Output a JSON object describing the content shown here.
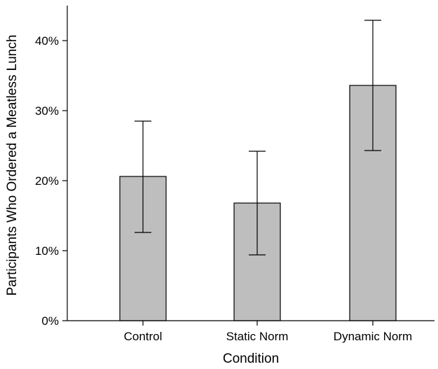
{
  "chart_data": {
    "type": "bar",
    "categories": [
      "Control",
      "Static Norm",
      "Dynamic Norm"
    ],
    "values": [
      20.6,
      16.8,
      33.6
    ],
    "error_bars": [
      {
        "low": 12.6,
        "high": 28.5
      },
      {
        "low": 9.4,
        "high": 24.2
      },
      {
        "low": 24.3,
        "high": 42.9
      }
    ],
    "xlabel": "Condition",
    "ylabel": "Participants Who Ordered a Meatless Lunch",
    "ylim": [
      0,
      45
    ],
    "yticks": [
      0,
      10,
      20,
      30,
      40
    ],
    "ytick_labels": [
      "0%",
      "10%",
      "20%",
      "30%",
      "40%"
    ],
    "bar_color": "#bebebe",
    "grid": false,
    "legend": "none"
  }
}
